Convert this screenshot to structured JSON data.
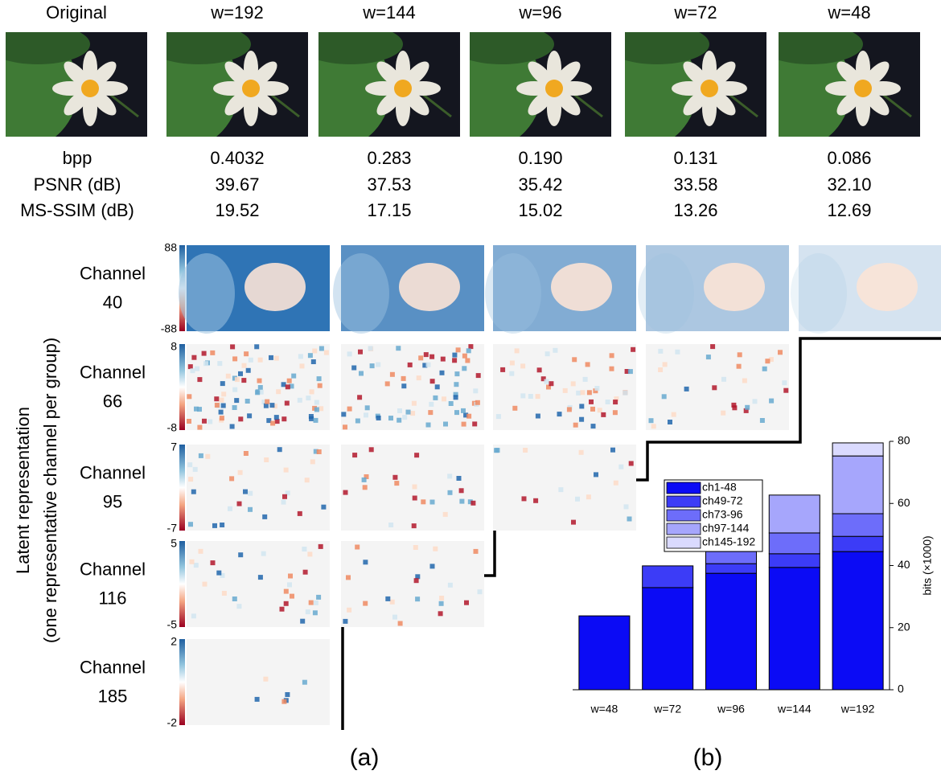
{
  "panel_a": {
    "column_titles": [
      "Original",
      "w=192",
      "w=144",
      "w=96",
      "w=72",
      "w=48"
    ],
    "metric_labels": [
      "bpp",
      "PSNR (dB)",
      "MS-SSIM (dB)"
    ],
    "metric_values": [
      [
        "0.4032",
        "0.283",
        "0.190",
        "0.131",
        "0.086"
      ],
      [
        "39.67",
        "37.53",
        "35.42",
        "33.58",
        "32.10"
      ],
      [
        "19.52",
        "17.15",
        "15.02",
        "13.26",
        "12.69"
      ]
    ],
    "row_axis_label": [
      "Latent representation",
      "(one representative channel per group)"
    ],
    "channels": [
      {
        "label": [
          "Channel",
          "40"
        ],
        "cmax": 88,
        "cmin": -88
      },
      {
        "label": [
          "Channel",
          "66"
        ],
        "cmax": 8,
        "cmin": -8
      },
      {
        "label": [
          "Channel",
          "95"
        ],
        "cmax": 7,
        "cmin": -7
      },
      {
        "label": [
          "Channel",
          "116"
        ],
        "cmax": 5,
        "cmin": -5
      },
      {
        "label": [
          "Channel",
          "185"
        ],
        "cmax": 2,
        "cmin": -2
      }
    ],
    "caption": "(a)"
  },
  "chart_data": {
    "type": "stacked_bar",
    "caption": "(b)",
    "ylabel": "bits (×1000)",
    "categories": [
      "w=48",
      "w=72",
      "w=96",
      "w=144",
      "w=192"
    ],
    "series": [
      {
        "name": "ch1-48",
        "color": "#0b0bf5",
        "values": [
          23.8,
          32.9,
          37.5,
          39.4,
          44.5
        ]
      },
      {
        "name": "ch49-72",
        "color": "#3c3cf7",
        "values": [
          null,
          7.0,
          3.1,
          4.4,
          4.9
        ]
      },
      {
        "name": "ch73-96",
        "color": "#6d6dfa",
        "values": [
          null,
          null,
          3.9,
          6.7,
          7.3
        ]
      },
      {
        "name": "ch97-144",
        "color": "#a6a6fc",
        "values": [
          null,
          null,
          null,
          12.2,
          18.6
        ]
      },
      {
        "name": "ch145-192",
        "color": "#dadafe",
        "values": [
          null,
          null,
          null,
          null,
          4.2
        ]
      }
    ],
    "ylim": [
      0,
      80
    ],
    "yticks": [
      0,
      20,
      40,
      60,
      80
    ],
    "y_axis_side": "right",
    "legend": "upper left"
  }
}
